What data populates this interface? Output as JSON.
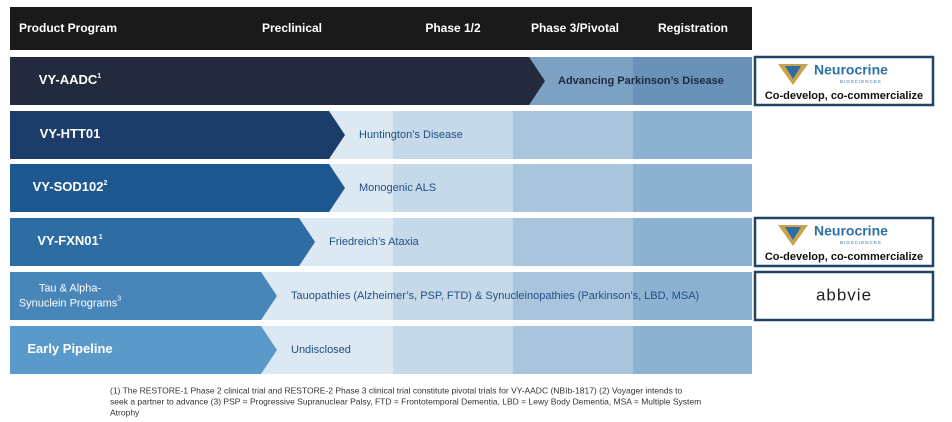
{
  "header": {
    "columns": [
      "Product Program",
      "Preclinical",
      "Phase 1/2",
      "Phase 3/Pivotal",
      "Registration"
    ]
  },
  "programs": [
    {
      "name_lines": [
        "VY-AADC"
      ],
      "sup": "1",
      "indication": "Advancing Parkinson’s Disease",
      "partner": {
        "logo": "Neurocrine",
        "logo_sub": "BIOSCIENCES",
        "note": "Co-develop, co-commercialize"
      }
    },
    {
      "name_lines": [
        "VY-HTT01"
      ],
      "sup": "",
      "indication": "Huntington’s Disease"
    },
    {
      "name_lines": [
        "VY-SOD102"
      ],
      "sup": "2",
      "indication": "Monogenic ALS"
    },
    {
      "name_lines": [
        "VY-FXN01"
      ],
      "sup": "1",
      "indication": "Friedreich’s Ataxia",
      "partner": {
        "logo": "Neurocrine",
        "logo_sub": "BIOSCIENCES",
        "note": "Co-develop, co-commercialize"
      }
    },
    {
      "name_lines": [
        "Tau & Alpha-",
        "Synuclein Programs"
      ],
      "sup": "3",
      "indication": "Tauopathies (Alzheimer’s, PSP, FTD) & Synucleinopathies (Parkinson’s, LBD, MSA)",
      "partner": {
        "logo": "abbvie"
      }
    },
    {
      "name_lines": [
        "Early Pipeline"
      ],
      "sup": "",
      "indication": "Undisclosed"
    }
  ],
  "footnote": {
    "lines": [
      "(1) The RESTORE-1 Phase 2 clinical trial and RESTORE-2 Phase 3 clinical trial constitute pivotal trials for VY-AADC (NBIb-1817)  (2) Voyager intends to",
      "seek a partner to advance (3) PSP = Progressive Supranuclear Palsy, FTD = Frontotemporal Dementia, LBD = Lewy Body Dementia, MSA = Multiple System",
      "Atrophy"
    ]
  }
}
